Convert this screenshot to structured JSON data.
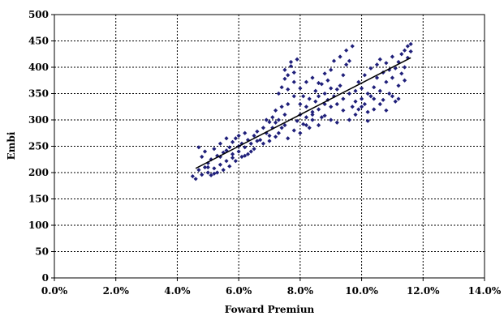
{
  "chart_data": {
    "type": "scatter",
    "title": "",
    "xlabel": "Foward Premiun",
    "ylabel": "Embi",
    "xlim": [
      0.0,
      14.0
    ],
    "ylim": [
      0,
      500
    ],
    "xticks": [
      0,
      2,
      4,
      6,
      8,
      10,
      12,
      14
    ],
    "xtick_labels": [
      "0.0%",
      "2.0%",
      "4.0%",
      "6.0%",
      "8.0%",
      "10.0%",
      "12.0%",
      "14.0%"
    ],
    "yticks": [
      0,
      50,
      100,
      150,
      200,
      250,
      300,
      350,
      400,
      450,
      500
    ],
    "ytick_labels": [
      "0",
      "50",
      "100",
      "150",
      "200",
      "250",
      "300",
      "350",
      "400",
      "450",
      "500"
    ],
    "grid": true,
    "legend": "none",
    "marker": "diamond",
    "colors": {
      "points": "#1f1f7a",
      "trendline": "#000000",
      "grid": "#000000"
    },
    "trendline": {
      "x": [
        4.6,
        11.6
      ],
      "y": [
        208,
        418
      ]
    },
    "series": [
      {
        "points": [
          [
            4.5,
            193
          ],
          [
            4.6,
            188
          ],
          [
            4.7,
            205
          ],
          [
            4.7,
            248
          ],
          [
            4.8,
            196
          ],
          [
            4.8,
            230
          ],
          [
            4.9,
            210
          ],
          [
            4.9,
            240
          ],
          [
            5.0,
            200
          ],
          [
            5.0,
            218
          ],
          [
            5.1,
            195
          ],
          [
            5.1,
            225
          ],
          [
            5.2,
            208
          ],
          [
            5.2,
            245
          ],
          [
            5.3,
            200
          ],
          [
            5.3,
            232
          ],
          [
            5.4,
            215
          ],
          [
            5.4,
            255
          ],
          [
            5.5,
            205
          ],
          [
            5.5,
            238
          ],
          [
            5.6,
            222
          ],
          [
            5.6,
            265
          ],
          [
            5.7,
            212
          ],
          [
            5.7,
            248
          ],
          [
            5.8,
            235
          ],
          [
            5.8,
            258
          ],
          [
            5.9,
            222
          ],
          [
            5.9,
            265
          ],
          [
            6.0,
            240
          ],
          [
            6.0,
            270
          ],
          [
            6.1,
            230
          ],
          [
            6.1,
            255
          ],
          [
            6.2,
            248
          ],
          [
            6.2,
            275
          ],
          [
            6.3,
            235
          ],
          [
            6.3,
            262
          ],
          [
            6.4,
            255
          ],
          [
            6.5,
            245
          ],
          [
            6.5,
            270
          ],
          [
            6.6,
            260
          ],
          [
            5.0,
            210
          ],
          [
            5.2,
            198
          ],
          [
            5.4,
            230
          ],
          [
            5.6,
            242
          ],
          [
            5.8,
            228
          ],
          [
            6.0,
            250
          ],
          [
            6.2,
            232
          ],
          [
            6.4,
            240
          ],
          [
            6.6,
            278
          ],
          [
            6.7,
            262
          ],
          [
            6.8,
            285
          ],
          [
            6.9,
            275
          ],
          [
            7.0,
            296
          ],
          [
            7.0,
            270
          ],
          [
            7.1,
            305
          ],
          [
            7.1,
            285
          ],
          [
            7.2,
            295
          ],
          [
            7.2,
            318
          ],
          [
            7.3,
            275
          ],
          [
            7.3,
            300
          ],
          [
            7.4,
            285
          ],
          [
            7.4,
            325
          ],
          [
            7.5,
            290
          ],
          [
            7.5,
            310
          ],
          [
            7.3,
            350
          ],
          [
            7.4,
            362
          ],
          [
            7.5,
            378
          ],
          [
            7.5,
            395
          ],
          [
            7.6,
            358
          ],
          [
            7.6,
            385
          ],
          [
            7.7,
            402
          ],
          [
            7.7,
            410
          ],
          [
            7.8,
            372
          ],
          [
            7.8,
            390
          ],
          [
            7.9,
            415
          ],
          [
            7.9,
            298
          ],
          [
            8.0,
            310
          ],
          [
            8.0,
            330
          ],
          [
            8.1,
            292
          ],
          [
            8.1,
            345
          ],
          [
            8.2,
            305
          ],
          [
            8.2,
            325
          ],
          [
            8.3,
            285
          ],
          [
            8.3,
            340
          ],
          [
            8.4,
            315
          ],
          [
            8.4,
            300
          ],
          [
            8.5,
            335
          ],
          [
            8.5,
            355
          ],
          [
            8.6,
            320
          ],
          [
            8.6,
            345
          ],
          [
            8.7,
            305
          ],
          [
            8.7,
            368
          ],
          [
            8.8,
            330
          ],
          [
            8.8,
            350
          ],
          [
            8.9,
            338
          ],
          [
            8.9,
            375
          ],
          [
            9.0,
            325
          ],
          [
            9.0,
            395
          ],
          [
            9.1,
            345
          ],
          [
            9.1,
            412
          ],
          [
            9.2,
            330
          ],
          [
            9.2,
            358
          ],
          [
            9.3,
            365
          ],
          [
            9.3,
            420
          ],
          [
            9.4,
            340
          ],
          [
            9.4,
            385
          ],
          [
            9.5,
            405
          ],
          [
            9.5,
            432
          ],
          [
            9.6,
            350
          ],
          [
            9.6,
            412
          ],
          [
            9.7,
            325
          ],
          [
            9.7,
            440
          ],
          [
            9.8,
            335
          ],
          [
            9.8,
            355
          ],
          [
            9.9,
            320
          ],
          [
            9.9,
            372
          ],
          [
            10.0,
            340
          ],
          [
            10.0,
            360
          ],
          [
            10.1,
            330
          ],
          [
            10.1,
            385
          ],
          [
            10.2,
            350
          ],
          [
            10.2,
            315
          ],
          [
            10.3,
            345
          ],
          [
            10.3,
            398
          ],
          [
            10.4,
            362
          ],
          [
            10.4,
            320
          ],
          [
            10.5,
            380
          ],
          [
            10.5,
            405
          ],
          [
            10.6,
            355
          ],
          [
            10.6,
            415
          ],
          [
            10.7,
            390
          ],
          [
            10.7,
            338
          ],
          [
            10.8,
            372
          ],
          [
            10.8,
            408
          ],
          [
            10.9,
            395
          ],
          [
            10.9,
            350
          ],
          [
            11.0,
            380
          ],
          [
            11.0,
            420
          ],
          [
            11.1,
            398
          ],
          [
            11.1,
            335
          ],
          [
            11.2,
            410
          ],
          [
            11.2,
            365
          ],
          [
            11.3,
            425
          ],
          [
            11.3,
            388
          ],
          [
            11.4,
            432
          ],
          [
            11.4,
            400
          ],
          [
            11.5,
            440
          ],
          [
            11.5,
            418
          ],
          [
            11.6,
            444
          ],
          [
            11.6,
            430
          ],
          [
            7.6,
            265
          ],
          [
            7.8,
            280
          ],
          [
            8.0,
            275
          ],
          [
            8.2,
            290
          ],
          [
            8.4,
            310
          ],
          [
            8.6,
            290
          ],
          [
            8.8,
            308
          ],
          [
            9.0,
            300
          ],
          [
            9.2,
            295
          ],
          [
            9.4,
            318
          ],
          [
            9.6,
            300
          ],
          [
            9.8,
            310
          ],
          [
            10.0,
            325
          ],
          [
            10.2,
            298
          ],
          [
            10.4,
            340
          ],
          [
            10.6,
            330
          ],
          [
            10.8,
            318
          ],
          [
            11.0,
            345
          ],
          [
            11.2,
            340
          ],
          [
            11.4,
            375
          ],
          [
            6.8,
            255
          ],
          [
            7.0,
            260
          ],
          [
            7.2,
            268
          ],
          [
            6.9,
            300
          ],
          [
            7.6,
            330
          ],
          [
            7.8,
            345
          ],
          [
            8.0,
            360
          ],
          [
            8.2,
            372
          ],
          [
            8.4,
            380
          ],
          [
            8.6,
            370
          ],
          [
            8.8,
            388
          ],
          [
            9.0,
            360
          ]
        ]
      }
    ]
  }
}
